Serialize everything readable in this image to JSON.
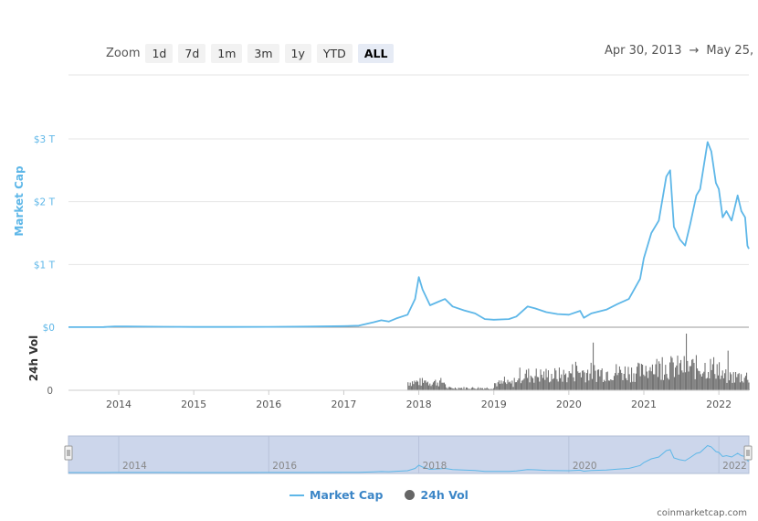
{
  "toolbar": {
    "zoom_label": "Zoom",
    "buttons": [
      "1d",
      "7d",
      "1m",
      "3m",
      "1y",
      "YTD",
      "ALL"
    ],
    "active": "ALL"
  },
  "range": {
    "from": "Apr 30, 2013",
    "arrow": "→",
    "to": "May 25, 2"
  },
  "legend": {
    "market_cap": "Market Cap",
    "volume": "24h Vol"
  },
  "credit": "coinmarketcap.com",
  "colors": {
    "line": "#5eb7e8",
    "volume": "#666666",
    "navigator_fill": "#ccd6eb",
    "axis_label": "#5eb7e8"
  },
  "chart_data": {
    "type": "line",
    "x_range": [
      "2013-04-30",
      "2022-05-25"
    ],
    "x_ticks": [
      "2014",
      "2015",
      "2016",
      "2017",
      "2018",
      "2019",
      "2020",
      "2021",
      "2022"
    ],
    "market_cap": {
      "name": "Market Cap",
      "ylabel": "Market Cap",
      "unit": "USD trillions",
      "ylim": [
        0,
        3
      ],
      "y_ticks": [
        "$0",
        "$1 T",
        "$2 T",
        "$3 T"
      ],
      "points": [
        [
          2013.33,
          0.0015
        ],
        [
          2013.8,
          0.003
        ],
        [
          2013.95,
          0.013
        ],
        [
          2014.1,
          0.011
        ],
        [
          2014.6,
          0.008
        ],
        [
          2015.0,
          0.004
        ],
        [
          2015.5,
          0.004
        ],
        [
          2016.0,
          0.006
        ],
        [
          2016.5,
          0.01
        ],
        [
          2017.0,
          0.017
        ],
        [
          2017.2,
          0.025
        ],
        [
          2017.4,
          0.08
        ],
        [
          2017.5,
          0.11
        ],
        [
          2017.6,
          0.09
        ],
        [
          2017.7,
          0.14
        ],
        [
          2017.85,
          0.2
        ],
        [
          2017.95,
          0.45
        ],
        [
          2018.0,
          0.8
        ],
        [
          2018.05,
          0.6
        ],
        [
          2018.15,
          0.35
        ],
        [
          2018.25,
          0.4
        ],
        [
          2018.35,
          0.45
        ],
        [
          2018.45,
          0.33
        ],
        [
          2018.6,
          0.27
        ],
        [
          2018.75,
          0.22
        ],
        [
          2018.88,
          0.13
        ],
        [
          2019.0,
          0.12
        ],
        [
          2019.2,
          0.13
        ],
        [
          2019.3,
          0.17
        ],
        [
          2019.45,
          0.33
        ],
        [
          2019.55,
          0.3
        ],
        [
          2019.7,
          0.24
        ],
        [
          2019.85,
          0.21
        ],
        [
          2020.0,
          0.2
        ],
        [
          2020.15,
          0.26
        ],
        [
          2020.2,
          0.15
        ],
        [
          2020.3,
          0.22
        ],
        [
          2020.5,
          0.28
        ],
        [
          2020.65,
          0.37
        ],
        [
          2020.8,
          0.45
        ],
        [
          2020.95,
          0.77
        ],
        [
          2021.0,
          1.1
        ],
        [
          2021.1,
          1.5
        ],
        [
          2021.2,
          1.7
        ],
        [
          2021.3,
          2.4
        ],
        [
          2021.35,
          2.5
        ],
        [
          2021.4,
          1.6
        ],
        [
          2021.48,
          1.4
        ],
        [
          2021.55,
          1.3
        ],
        [
          2021.62,
          1.65
        ],
        [
          2021.7,
          2.1
        ],
        [
          2021.75,
          2.2
        ],
        [
          2021.85,
          2.95
        ],
        [
          2021.9,
          2.8
        ],
        [
          2021.96,
          2.3
        ],
        [
          2022.0,
          2.2
        ],
        [
          2022.05,
          1.75
        ],
        [
          2022.1,
          1.85
        ],
        [
          2022.17,
          1.7
        ],
        [
          2022.25,
          2.1
        ],
        [
          2022.3,
          1.85
        ],
        [
          2022.35,
          1.75
        ],
        [
          2022.38,
          1.3
        ],
        [
          2022.4,
          1.25
        ]
      ]
    },
    "volume": {
      "name": "24h Vol",
      "ylabel": "24h Vol",
      "y_ticks": [
        "0"
      ]
    },
    "navigator_ticks": [
      "2014",
      "2016",
      "2018",
      "2020",
      "2022"
    ]
  }
}
